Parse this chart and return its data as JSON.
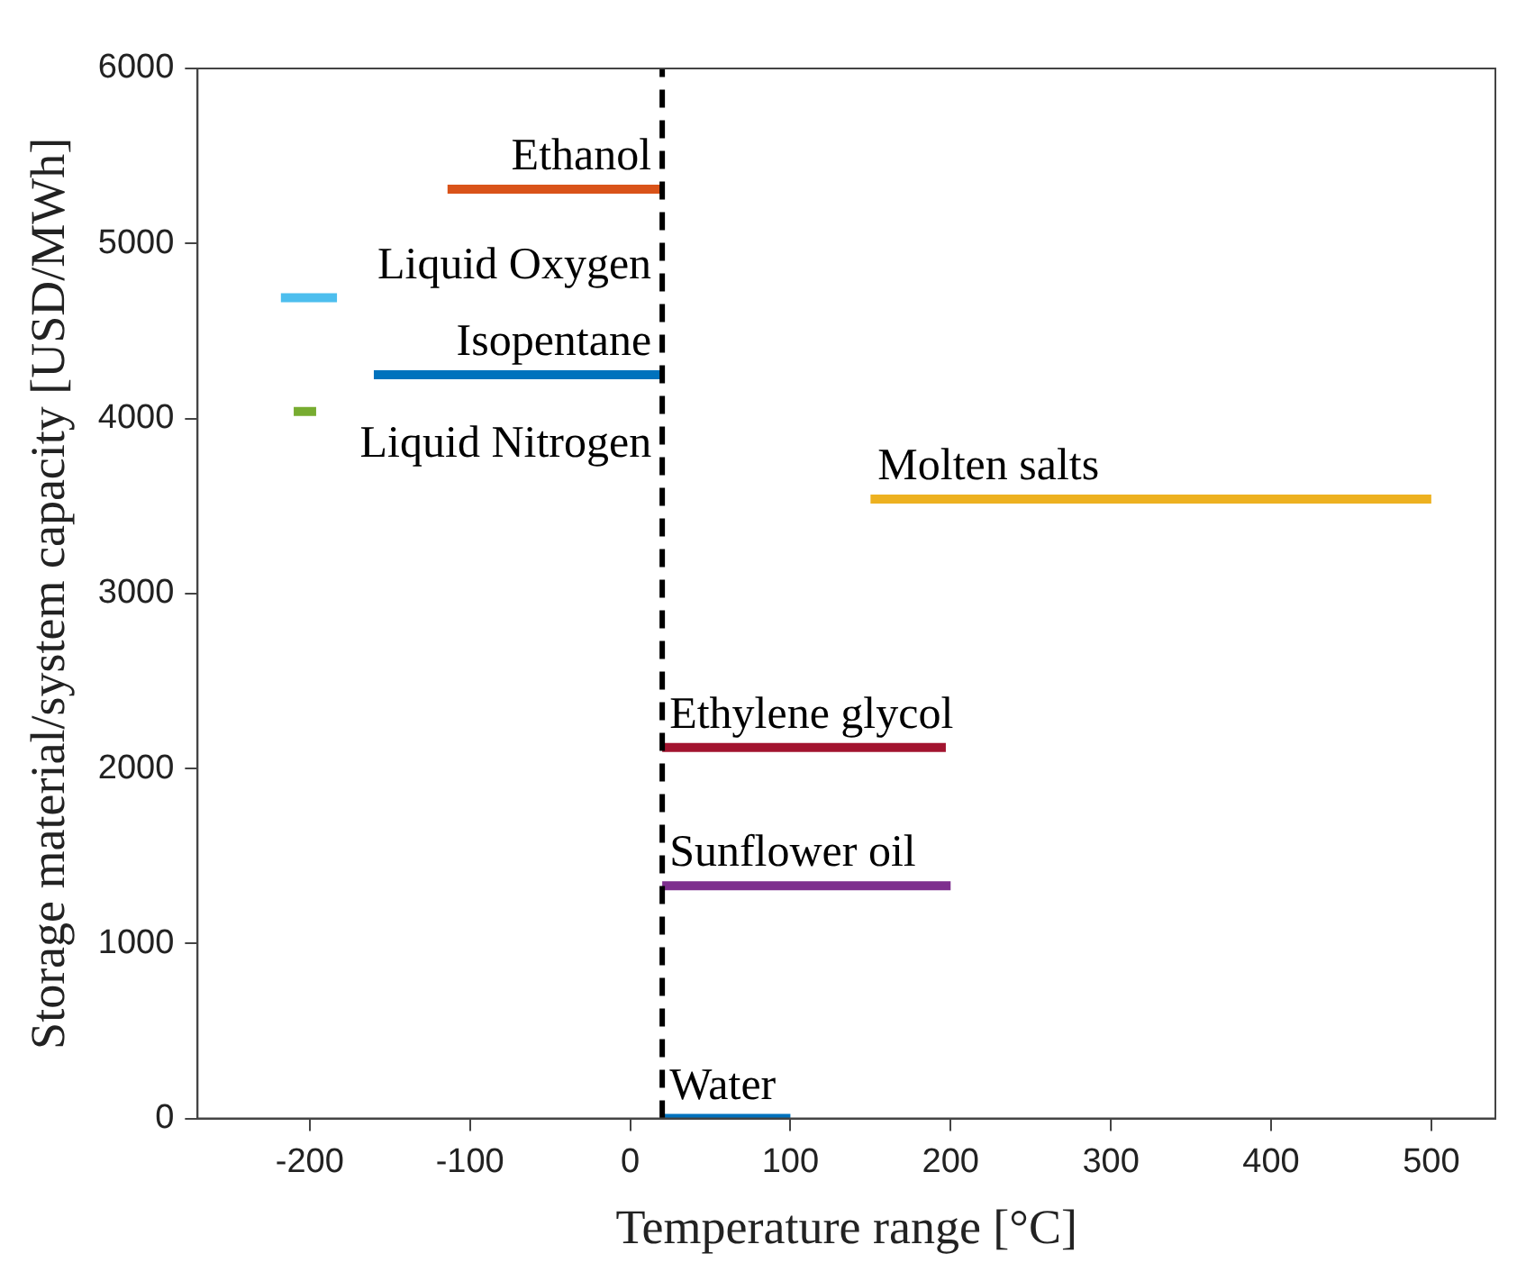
{
  "chart_data": {
    "type": "line",
    "xlabel": "Temperature range [°C]",
    "ylabel": "Storage material/system capacity [USD/MWh]",
    "xlim": [
      -270,
      540
    ],
    "xticks": [
      -200,
      -100,
      0,
      100,
      200,
      300,
      400,
      500
    ],
    "ylim": [
      0,
      6000
    ],
    "yticks": [
      0,
      1000,
      2000,
      3000,
      4000,
      5000,
      6000
    ],
    "grid": false,
    "legend": false,
    "marker": "none",
    "line_style": "solid",
    "series": [
      {
        "name": "Ethanol",
        "color": "#d95319",
        "x": [
          -114,
          20
        ],
        "values": [
          5310,
          5310
        ]
      },
      {
        "name": "Liquid Oxygen",
        "color": "#4dbeee",
        "x": [
          -218,
          -183
        ],
        "values": [
          4690,
          4690
        ]
      },
      {
        "name": "Isopentane",
        "color": "#0072bd",
        "x": [
          -160,
          20
        ],
        "values": [
          4250,
          4250
        ]
      },
      {
        "name": "Liquid Nitrogen",
        "color": "#77ac30",
        "x": [
          -210,
          -196
        ],
        "values": [
          4040,
          4040
        ]
      },
      {
        "name": "Molten salts",
        "color": "#edb120",
        "x": [
          150,
          500
        ],
        "values": [
          3540,
          3540
        ]
      },
      {
        "name": "Ethylene glycol",
        "color": "#a2142f",
        "x": [
          20,
          197
        ],
        "values": [
          2120,
          2120
        ]
      },
      {
        "name": "Sunflower oil",
        "color": "#7e2f8e",
        "x": [
          20,
          200
        ],
        "values": [
          1330,
          1330
        ]
      },
      {
        "name": "Water",
        "color": "#0072bd",
        "x": [
          20,
          100
        ],
        "values": [
          0,
          0
        ]
      }
    ],
    "ref_lines": [
      {
        "axis": "x",
        "value": 20,
        "color": "#000000",
        "line_style": "dashed"
      }
    ]
  }
}
